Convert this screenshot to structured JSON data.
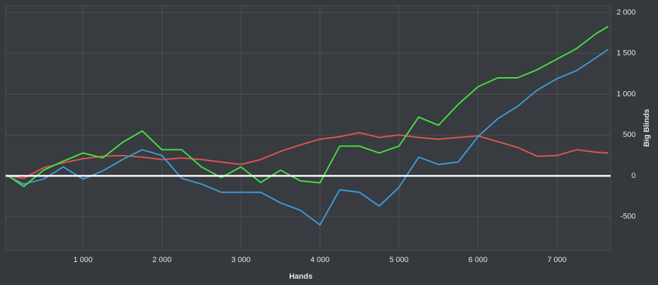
{
  "chart_data": {
    "type": "line",
    "x_label": "Hands",
    "y_label": "Big Blinds",
    "x": [
      40,
      250,
      500,
      750,
      1000,
      1250,
      1500,
      1750,
      2000,
      2250,
      2500,
      2750,
      3000,
      3250,
      3500,
      3750,
      4000,
      4250,
      4500,
      4750,
      5000,
      5250,
      5500,
      5750,
      6000,
      6250,
      6500,
      6750,
      7000,
      7250,
      7500,
      7650
    ],
    "series": [
      {
        "color": "#e0544f",
        "values": [
          0,
          -30,
          100,
          160,
          210,
          240,
          250,
          230,
          200,
          220,
          200,
          170,
          140,
          200,
          300,
          380,
          450,
          480,
          530,
          470,
          500,
          470,
          450,
          470,
          490,
          420,
          350,
          240,
          250,
          320,
          290,
          280
        ]
      },
      {
        "color": "#3d9ad8",
        "values": [
          0,
          -100,
          -40,
          110,
          -40,
          60,
          200,
          320,
          250,
          -30,
          -100,
          -200,
          -200,
          -200,
          -330,
          -420,
          -600,
          -170,
          -200,
          -370,
          -140,
          230,
          140,
          170,
          480,
          700,
          850,
          1050,
          1190,
          1290,
          1450,
          1550
        ]
      },
      {
        "color": "#44e03c",
        "values": [
          10,
          -130,
          70,
          180,
          280,
          220,
          410,
          550,
          320,
          320,
          110,
          -20,
          110,
          -80,
          70,
          -60,
          -85,
          365,
          365,
          280,
          365,
          720,
          620,
          875,
          1090,
          1200,
          1200,
          1300,
          1430,
          1560,
          1745,
          1830
        ]
      }
    ],
    "xlim": [
      20,
      7680
    ],
    "ylim": [
      -910,
      2085
    ],
    "xticks": [
      {
        "value": 1000,
        "label": "1 000"
      },
      {
        "value": 2000,
        "label": "2 000"
      },
      {
        "value": 3000,
        "label": "3 000"
      },
      {
        "value": 4000,
        "label": "4 000"
      },
      {
        "value": 5000,
        "label": "5 000"
      },
      {
        "value": 6000,
        "label": "6 000"
      },
      {
        "value": 7000,
        "label": "7 000"
      }
    ],
    "yticks": [
      {
        "value": 2000,
        "label": "2 000"
      },
      {
        "value": 1500,
        "label": "1 500"
      },
      {
        "value": 1000,
        "label": "1 000"
      },
      500,
      0,
      -500
    ],
    "grid": true,
    "zero_line": true
  }
}
